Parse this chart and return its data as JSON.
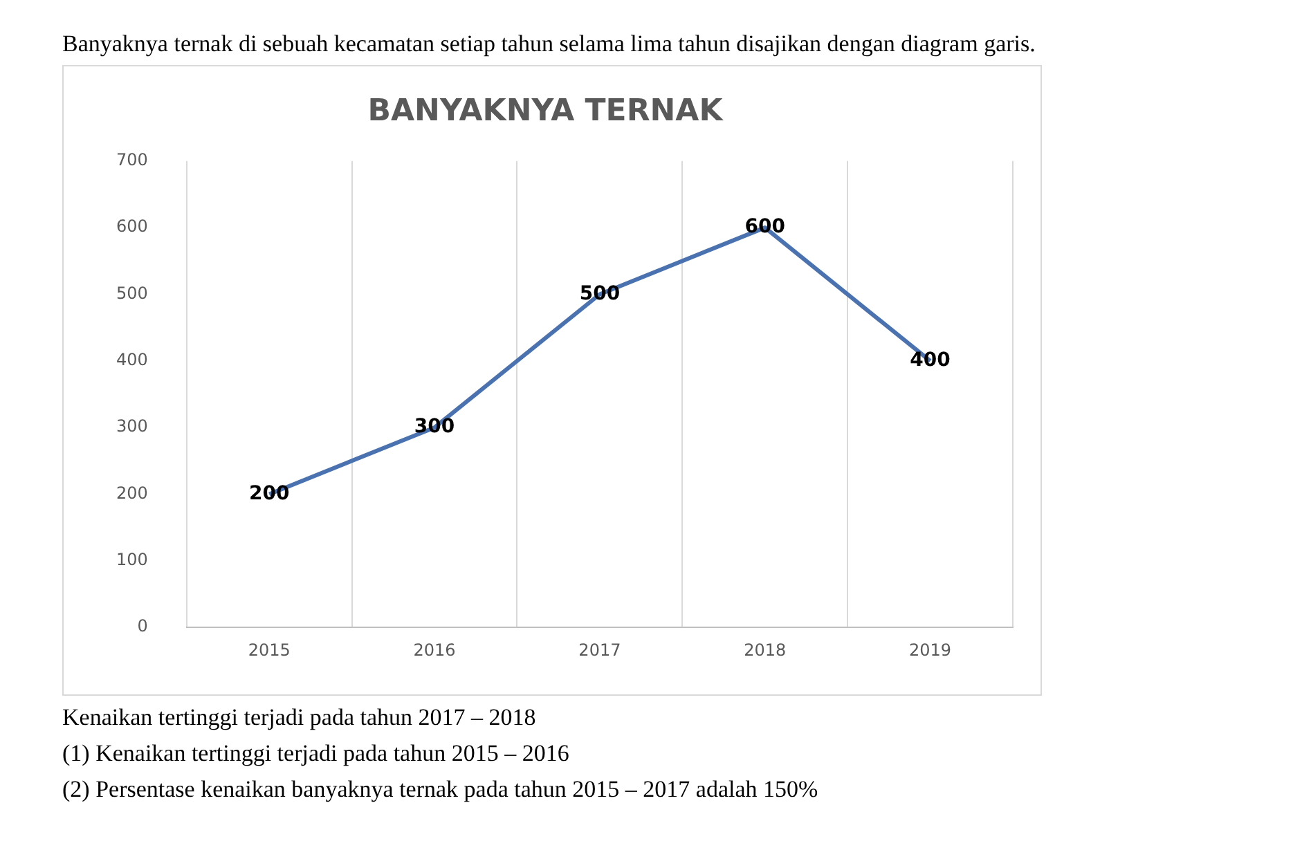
{
  "chart_data": {
    "type": "line",
    "title": "BANYAKNYA TERNAK",
    "subtitle": "Banyaknya ternak di sebuah kecamatan setiap tahun selama lima tahun disajikan dengan diagram garis.",
    "categories": [
      "2015",
      "2016",
      "2017",
      "2018",
      "2019"
    ],
    "series": [
      {
        "color": "#4a72b0",
        "values": [
          200,
          300,
          500,
          600,
          400
        ]
      }
    ],
    "ylim": [
      0,
      700
    ],
    "yticks": [
      0,
      100,
      200,
      300,
      400,
      500,
      600,
      700
    ],
    "grid": "x",
    "legend": false,
    "marker": "none",
    "line_style": "solid",
    "data_labels": true,
    "annotations": [
      "Kenaikan tertinggi terjadi pada tahun 2017 – 2018",
      "(1)  Kenaikan tertinggi terjadi pada tahun 2015 – 2016",
      "(2)  Persentase kenaikan banyaknya ternak pada tahun 2015 – 2017 adalah 150%"
    ]
  }
}
